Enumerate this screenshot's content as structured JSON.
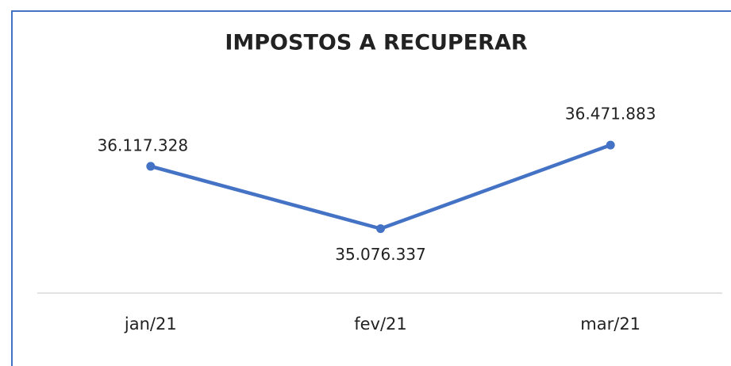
{
  "chart_data": {
    "type": "line",
    "title": "IMPOSTOS A RECUPERAR",
    "categories": [
      "jan/21",
      "fev/21",
      "mar/21"
    ],
    "series": [
      {
        "color": "#4472c4",
        "values": [
          36117328,
          35076337,
          36471883
        ],
        "value_labels": [
          "36.117.328",
          "35.076.337",
          "36.471.883"
        ]
      }
    ],
    "ylim": [
      34000000,
      36500000
    ]
  }
}
